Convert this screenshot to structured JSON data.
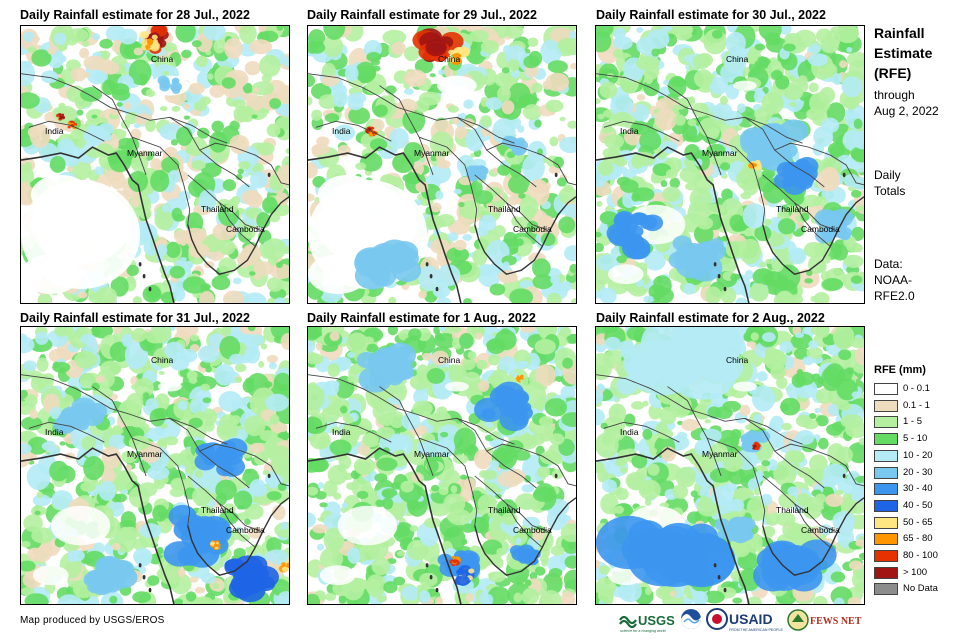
{
  "panels": [
    {
      "title": "Daily Rainfall estimate for 28 Jul., 2022",
      "labels": {
        "china": "China",
        "india": "India",
        "myanmar": "Myanmar",
        "thailand": "Thailand",
        "cambodia": "Cambodia"
      }
    },
    {
      "title": "Daily Rainfall estimate for 29 Jul., 2022",
      "labels": {
        "china": "China",
        "india": "India",
        "myanmar": "Myanmar",
        "thailand": "Thailand",
        "cambodia": "Cambodia"
      }
    },
    {
      "title": "Daily Rainfall estimate for 30 Jul., 2022",
      "labels": {
        "china": "China",
        "india": "India",
        "myanmar": "Myanmar",
        "thailand": "Thailand",
        "cambodia": "Cambodia"
      }
    },
    {
      "title": "Daily Rainfall estimate for 31 Jul., 2022",
      "labels": {
        "china": "China",
        "india": "India",
        "myanmar": "Myanmar",
        "thailand": "Thailand",
        "cambodia": "Cambodia"
      }
    },
    {
      "title": "Daily Rainfall estimate for 1 Aug., 2022",
      "labels": {
        "china": "China",
        "india": "India",
        "myanmar": "Myanmar",
        "thailand": "Thailand",
        "cambodia": "Cambodia"
      }
    },
    {
      "title": "Daily Rainfall estimate for 2 Aug., 2022",
      "labels": {
        "china": "China",
        "india": "India",
        "myanmar": "Myanmar",
        "thailand": "Thailand",
        "cambodia": "Cambodia"
      }
    }
  ],
  "sidebar": {
    "title_lines": [
      "Rainfall",
      "Estimate",
      "(RFE)"
    ],
    "through": "through",
    "date": "Aug 2, 2022",
    "daily": "Daily",
    "totals": "Totals",
    "data_label": "Data:",
    "data_source_1": "NOAA-",
    "data_source_2": "RFE2.0"
  },
  "legend": {
    "title": "RFE (mm)",
    "items": [
      {
        "label": "0 - 0.1",
        "color": "#ffffff"
      },
      {
        "label": "0.1 - 1",
        "color": "#eedcbe"
      },
      {
        "label": "1 - 5",
        "color": "#b4f0a0"
      },
      {
        "label": "5 - 10",
        "color": "#64dc64"
      },
      {
        "label": "10 - 20",
        "color": "#b4ebf5"
      },
      {
        "label": "20 - 30",
        "color": "#78c8f0"
      },
      {
        "label": "30 - 40",
        "color": "#3c96f0"
      },
      {
        "label": "40 - 50",
        "color": "#1e64e6"
      },
      {
        "label": "50 - 65",
        "color": "#ffe682"
      },
      {
        "label": "65 - 80",
        "color": "#ff9600"
      },
      {
        "label": "80 - 100",
        "color": "#e63200"
      },
      {
        "label": "> 100",
        "color": "#a01414"
      },
      {
        "label": "No Data",
        "color": "#8c8c8c"
      }
    ]
  },
  "credit": "Map produced by USGS/EROS",
  "logos": {
    "usgs": "USGS",
    "usgs_tagline": "science for a changing world",
    "usaid": "USAID",
    "usaid_tagline": "FROM THE AMERICAN PEOPLE",
    "fews": "FEWS NET"
  }
}
